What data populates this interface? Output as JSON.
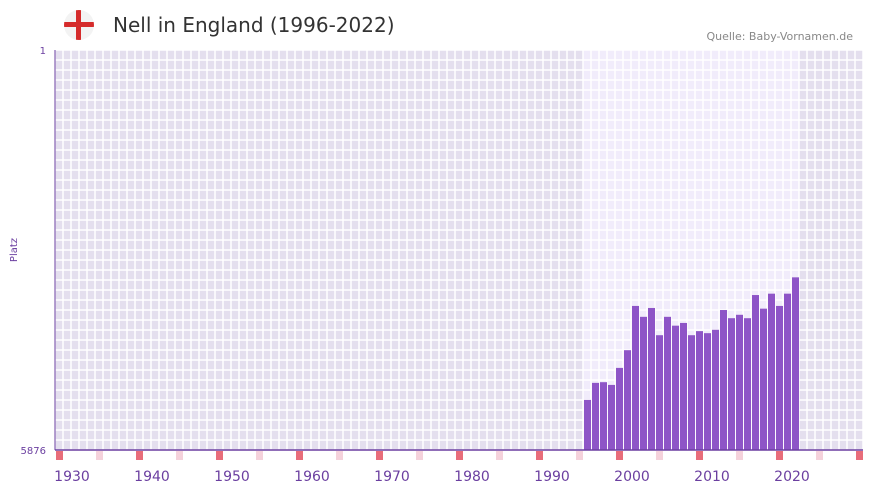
{
  "header": {
    "title": "Nell in England (1996-2022)",
    "source": "Quelle: Baby-Vornamen.de"
  },
  "chart_data": {
    "type": "bar",
    "title": "Nell in England (1996-2022)",
    "ylabel": "Platz",
    "ylim": [
      5876,
      1
    ],
    "ytick_labels": [
      "1",
      "5876"
    ],
    "xtick_labels": [
      "1930",
      "1940",
      "1950",
      "1960",
      "1970",
      "1980",
      "1990",
      "2000",
      "2010",
      "2020"
    ],
    "colors": {
      "bar": "#8e55c7",
      "bg": "#e4dfee",
      "bg_active": "#f1ecfb",
      "axis": "#6b3fa0",
      "marker": "#e86d7a",
      "marker_light": "#f5d2db"
    },
    "x": [
      1996,
      1997,
      1998,
      1999,
      2000,
      2001,
      2002,
      2003,
      2004,
      2005,
      2006,
      2007,
      2008,
      2009,
      2010,
      2011,
      2012,
      2013,
      2014,
      2015,
      2016,
      2017,
      2018,
      2019,
      2020,
      2021,
      2022
    ],
    "values": [
      5140,
      4890,
      4880,
      4920,
      4670,
      4410,
      3760,
      3920,
      3790,
      4190,
      3920,
      4050,
      4010,
      4190,
      4130,
      4160,
      4110,
      3820,
      3940,
      3890,
      3940,
      3600,
      3800,
      3580,
      3760,
      3580,
      3340
    ]
  }
}
